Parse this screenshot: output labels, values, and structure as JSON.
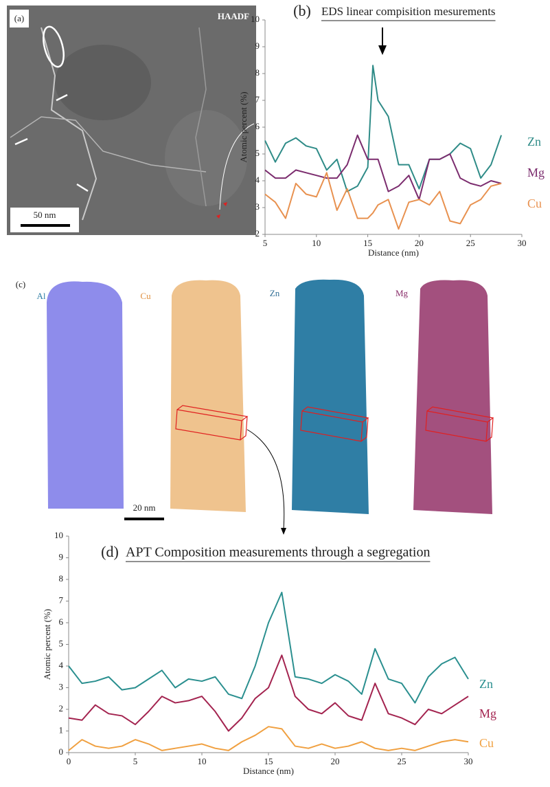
{
  "figure": {
    "panel_a": {
      "label": "(a)",
      "mode": "HAADF",
      "scale_bar": "50 nm"
    },
    "panel_c": {
      "label": "(c)",
      "maps": [
        "Al",
        "Cu",
        "Zn",
        "Mg"
      ],
      "scale_bar": "20 nm"
    }
  },
  "chart_data": [
    {
      "type": "line",
      "panel_label": "(b)",
      "title": "EDS linear compisition mesurements",
      "xlabel": "Distance (nm)",
      "ylabel": "Atomic percent (%)",
      "x": [
        5,
        6,
        7,
        8,
        9,
        10,
        11,
        12,
        13,
        14,
        15,
        15.5,
        16,
        17,
        18,
        19,
        20,
        21,
        22,
        23,
        24,
        25,
        26,
        27,
        28
      ],
      "series": [
        {
          "name": "Zn",
          "color": "#2e8b87",
          "values": [
            5.5,
            4.7,
            5.4,
            5.6,
            5.3,
            5.2,
            4.4,
            4.8,
            3.6,
            3.8,
            4.5,
            8.3,
            7.0,
            6.4,
            4.6,
            4.6,
            3.7,
            4.8,
            4.8,
            5.0,
            5.4,
            5.2,
            4.1,
            4.6,
            5.7
          ]
        },
        {
          "name": "Mg",
          "color": "#7b2c6e",
          "values": [
            4.4,
            4.1,
            4.1,
            4.4,
            4.3,
            4.2,
            4.1,
            4.1,
            4.6,
            5.7,
            4.8,
            4.8,
            4.8,
            3.6,
            3.8,
            4.2,
            3.3,
            4.8,
            4.8,
            5.0,
            4.1,
            3.9,
            3.8,
            4.0,
            3.9
          ]
        },
        {
          "name": "Cu",
          "color": "#e8914f",
          "values": [
            3.5,
            3.2,
            2.6,
            3.9,
            3.5,
            3.4,
            4.3,
            2.9,
            3.7,
            2.6,
            2.6,
            2.8,
            3.1,
            3.3,
            2.2,
            3.2,
            3.3,
            3.1,
            3.6,
            2.5,
            2.4,
            3.1,
            3.3,
            3.8,
            3.9
          ]
        }
      ],
      "xlim": [
        5,
        30
      ],
      "xticks": [
        5,
        10,
        15,
        20,
        25,
        30
      ],
      "ylim": [
        2,
        10
      ],
      "yticks": [
        2,
        3,
        4,
        5,
        6,
        7,
        8,
        9,
        10
      ]
    },
    {
      "type": "line",
      "panel_label": "(d)",
      "title": "APT Composition measurements through a segregation",
      "xlabel": "Distance (nm)",
      "ylabel": "Atomic percent (%)",
      "x": [
        0,
        1,
        2,
        3,
        4,
        5,
        6,
        7,
        8,
        9,
        10,
        11,
        12,
        13,
        14,
        15,
        16,
        17,
        18,
        19,
        20,
        21,
        22,
        23,
        24,
        25,
        26,
        27,
        28,
        29,
        30
      ],
      "series": [
        {
          "name": "Zn",
          "color": "#2a8f8f",
          "values": [
            4.0,
            3.2,
            3.3,
            3.5,
            2.9,
            3.0,
            3.4,
            3.8,
            3.0,
            3.4,
            3.3,
            3.5,
            2.7,
            2.5,
            4.0,
            6.0,
            7.4,
            3.5,
            3.4,
            3.2,
            3.6,
            3.3,
            2.7,
            4.8,
            3.4,
            3.2,
            2.3,
            3.5,
            4.1,
            4.4,
            3.4
          ]
        },
        {
          "name": "Mg",
          "color": "#a3234f",
          "values": [
            1.6,
            1.5,
            2.2,
            1.8,
            1.7,
            1.3,
            1.9,
            2.6,
            2.3,
            2.4,
            2.6,
            1.9,
            1.0,
            1.6,
            2.5,
            3.0,
            4.5,
            2.6,
            2.0,
            1.8,
            2.3,
            1.7,
            1.5,
            3.2,
            1.8,
            1.6,
            1.3,
            2.0,
            1.8,
            2.2,
            2.6
          ]
        },
        {
          "name": "Cu",
          "color": "#f0a040",
          "values": [
            0.1,
            0.6,
            0.3,
            0.2,
            0.3,
            0.6,
            0.4,
            0.1,
            0.2,
            0.3,
            0.4,
            0.2,
            0.1,
            0.5,
            0.8,
            1.2,
            1.1,
            0.3,
            0.2,
            0.4,
            0.2,
            0.3,
            0.5,
            0.2,
            0.1,
            0.2,
            0.1,
            0.3,
            0.5,
            0.6,
            0.5
          ]
        }
      ],
      "xlim": [
        0,
        30
      ],
      "xticks": [
        0,
        5,
        10,
        15,
        20,
        25,
        30
      ],
      "ylim": [
        0,
        10
      ],
      "yticks": [
        0,
        1,
        2,
        3,
        4,
        5,
        6,
        7,
        8,
        9,
        10
      ]
    }
  ]
}
